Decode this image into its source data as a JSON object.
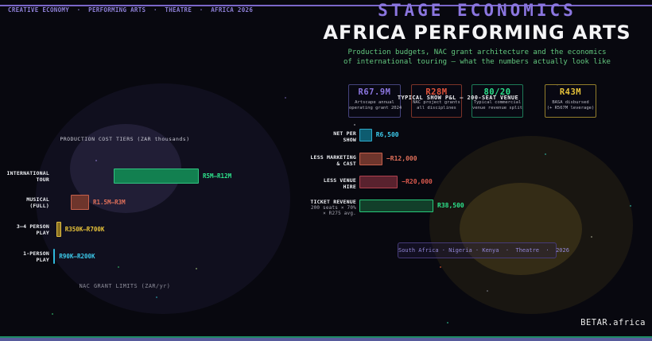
{
  "breadcrumb": "CREATIVE ECONOMY  ·  PERFORMING ARTS  ·  THEATRE  ·  AFRICA 2026",
  "header": {
    "kicker": "STAGE ECONOMICS",
    "title": "AFRICA PERFORMING ARTS",
    "tagline_line1": "Production budgets, NAC grant architecture and the economics",
    "tagline_line2": "of international touring — what the numbers actually look like",
    "accent_purple": "#8b76e0",
    "tagline_green": "#63c87f"
  },
  "stat_cards": [
    {
      "value": "R67.9M",
      "desc_line1": "Artscape annual",
      "desc_line2": "operating grant 2024",
      "value_color": "#8b76e0",
      "border_color": "#45437d"
    },
    {
      "value": "R28M",
      "desc_line1": "NAC project grants",
      "desc_line2": "all disciplines",
      "value_color": "#e2543b",
      "border_color": "#7c3328"
    },
    {
      "value": "80/20",
      "desc_line1": "Typical commercial",
      "desc_line2": "venue revenue split",
      "value_color": "#2de28b",
      "border_color": "#1d7a57"
    },
    {
      "value": "R43M",
      "desc_line1": "BASA disbursed",
      "desc_line2": "(+ R567M leverage)",
      "value_color": "#e7c33a",
      "border_color": "#937e2b"
    }
  ],
  "chart_data": [
    {
      "id": "production-cost-tiers",
      "type": "bar",
      "orientation": "horizontal-range",
      "title": "PRODUCTION COST TIERS (ZAR thousands)",
      "footer": "NAC GRANT LIMITS (ZAR/yr)",
      "unit": "ZAR thousands",
      "xlim": [
        0,
        12000
      ],
      "grid": false,
      "rows": [
        {
          "label_line1": "INTERNATIONAL",
          "label_line2": "TOUR",
          "range": [
            5000,
            12000
          ],
          "value_label": "R5M—R12M",
          "fill": "#128050",
          "stroke": "#31c380",
          "text_color": "#2de28b"
        },
        {
          "label_line1": "MUSICAL",
          "label_line2": "(FULL)",
          "range": [
            1500,
            3000
          ],
          "value_label": "R1.5M—R3M",
          "fill": "#6e352c",
          "stroke": "#c5604c",
          "text_color": "#e0705a"
        },
        {
          "label_line1": "3–4 PERSON",
          "label_line2": "PLAY",
          "range": [
            350,
            700
          ],
          "value_label": "R350K—R700K",
          "fill": "#8a701f",
          "stroke": "#e3bf45",
          "text_color": "#e7c33a"
        },
        {
          "label_line1": "1-PERSON",
          "label_line2": "PLAY",
          "range": [
            90,
            200
          ],
          "value_label": "R90K—R200K",
          "fill": "#2fb9dc",
          "stroke": "#2fb9dc",
          "text_color": "#3cc9ea"
        }
      ]
    },
    {
      "id": "typical-show-pnl",
      "type": "bar",
      "orientation": "horizontal",
      "title": "TYPICAL SHOW P&L — 200-SEAT VENUE",
      "unit": "ZAR",
      "xlim": [
        0,
        38500
      ],
      "grid": false,
      "rows": [
        {
          "label_line1": "NET PER",
          "label_line2": "SHOW",
          "value": 6500,
          "value_label": "R6,500",
          "fill": "#0d5c70",
          "stroke": "#2fa8c9",
          "text_color": "#3cc9ea"
        },
        {
          "label_line1": "LESS MARKETING",
          "label_line2": "& CAST",
          "value": -12000,
          "value_label": "−R12,000",
          "fill": "#6e352c",
          "stroke": "#c5604c",
          "text_color": "#e0705a"
        },
        {
          "label_line1": "LESS VENUE",
          "label_line2": "HIRE",
          "value": -20000,
          "value_label": "−R20,000",
          "fill": "#59222e",
          "stroke": "#b0414e",
          "text_color": "#dd5a4e"
        },
        {
          "label_line1": "TICKET REVENUE",
          "label_line2": "200 seats × 70%",
          "label_line3": "× R275 avg.",
          "value": 38500,
          "value_label": "R38,500",
          "fill": "#123f2a",
          "stroke": "#27c97a",
          "text_color": "#2de28b"
        }
      ]
    }
  ],
  "tags_pill": "South Africa · Nigeria · Kenya  ·  Theatre  ·  2026",
  "footer": {
    "brand": "BETAR.africa"
  }
}
